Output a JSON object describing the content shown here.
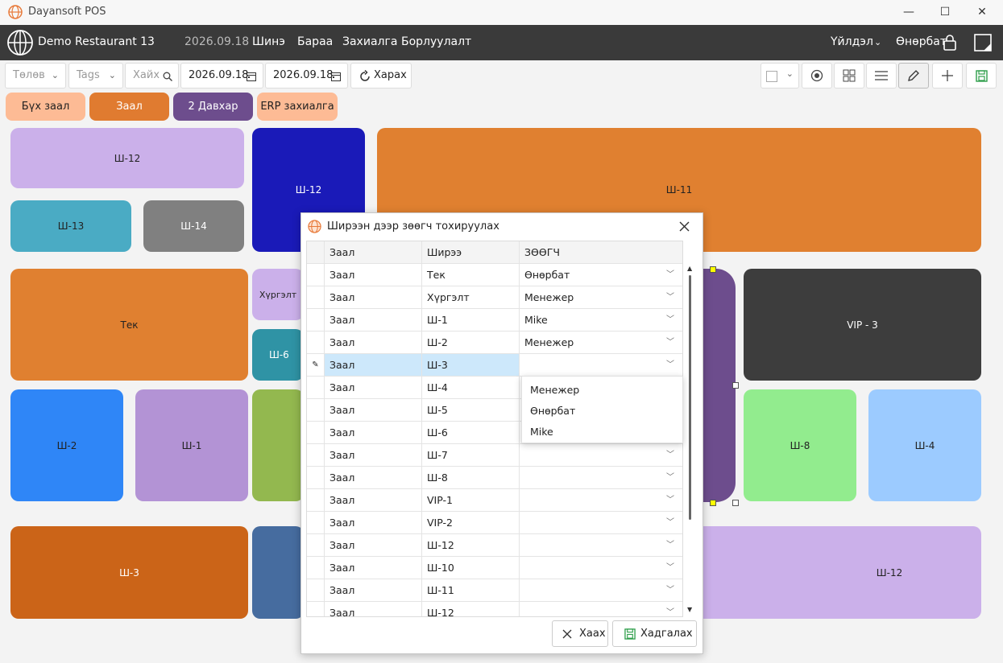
{
  "app": {
    "title": "Dayansoft POS"
  },
  "window_controls": {
    "minimize": "—",
    "maximize": "☐",
    "close": "✕"
  },
  "menubar": {
    "restaurant": "Demo Restaurant 13",
    "date": "2026.09.18",
    "items": [
      "Шинэ",
      "Бараа",
      "Захиалга",
      "Борлуулалт"
    ],
    "operations": "Үйлдэл",
    "user": "Өнөрбат"
  },
  "toolbar": {
    "status_placeholder": "Төлөв",
    "tags_placeholder": "Tags",
    "search_placeholder": "Хайх",
    "date_from": "2026.09.18",
    "date_to": "2026.09.18",
    "refresh_label": "Харах"
  },
  "tabs": [
    {
      "label": "Бүх заал",
      "color": "#fdbb95"
    },
    {
      "label": "Заал",
      "color": "#e07b30"
    },
    {
      "label": "2 Давхар",
      "color": "#6d4d8d"
    },
    {
      "label": "ERP захиалга",
      "color": "#fdbb95"
    }
  ],
  "tables": [
    {
      "label": "Ш-12",
      "color": "#cbb0ea"
    },
    {
      "label": "Ш-12",
      "color": "#1a1ab8"
    },
    {
      "label": "Ш-11",
      "color": "#e08030"
    },
    {
      "label": "Ш-13",
      "color": "#4aabc4"
    },
    {
      "label": "Ш-14",
      "color": "#808080"
    },
    {
      "label": "Тек",
      "color": "#e08030"
    },
    {
      "label": "Хүргэлт",
      "color": "#cbb0ea"
    },
    {
      "label": "Ш-6",
      "color": "#2f93a5"
    },
    {
      "label": "VIP - 3",
      "color": "#3d3d3d"
    },
    {
      "label": "Ш-2",
      "color": "#2f86f7"
    },
    {
      "label": "Ш-1",
      "color": "#b393d5"
    },
    {
      "label": "Ш-8",
      "color": "#92ec8e"
    },
    {
      "label": "Ш-4",
      "color": "#9ccbff"
    },
    {
      "label": "Ш-3",
      "color": "#cb6418"
    },
    {
      "label": "Ш-12",
      "color": "#cbb0ea"
    }
  ],
  "dialog": {
    "title": "Ширээн дээр зөөгч тохируулах",
    "columns": [
      "Заал",
      "Ширээ",
      "ЗӨӨГЧ"
    ],
    "rows": [
      {
        "hall": "Заал",
        "table": "Тек",
        "waiter": "Өнөрбат"
      },
      {
        "hall": "Заал",
        "table": "Хүргэлт",
        "waiter": "Менежер"
      },
      {
        "hall": "Заал",
        "table": "Ш-1",
        "waiter": "Mike"
      },
      {
        "hall": "Заал",
        "table": "Ш-2",
        "waiter": "Менежер"
      },
      {
        "hall": "Заал",
        "table": "Ш-3",
        "waiter": ""
      },
      {
        "hall": "Заал",
        "table": "Ш-4",
        "waiter": ""
      },
      {
        "hall": "Заал",
        "table": "Ш-5",
        "waiter": ""
      },
      {
        "hall": "Заал",
        "table": "Ш-6",
        "waiter": ""
      },
      {
        "hall": "Заал",
        "table": "Ш-7",
        "waiter": ""
      },
      {
        "hall": "Заал",
        "table": "Ш-8",
        "waiter": ""
      },
      {
        "hall": "Заал",
        "table": "VIP-1",
        "waiter": ""
      },
      {
        "hall": "Заал",
        "table": "VIP-2",
        "waiter": ""
      },
      {
        "hall": "Заал",
        "table": "Ш-12",
        "waiter": ""
      },
      {
        "hall": "Заал",
        "table": "Ш-10",
        "waiter": ""
      },
      {
        "hall": "Заал",
        "table": "Ш-11",
        "waiter": ""
      },
      {
        "hall": "Заал",
        "table": "Ш-12",
        "waiter": ""
      }
    ],
    "dropdown_options": [
      "Менежер",
      "Өнөрбат",
      "Mike"
    ],
    "close_label": "Хаах",
    "save_label": "Хадгалах"
  }
}
